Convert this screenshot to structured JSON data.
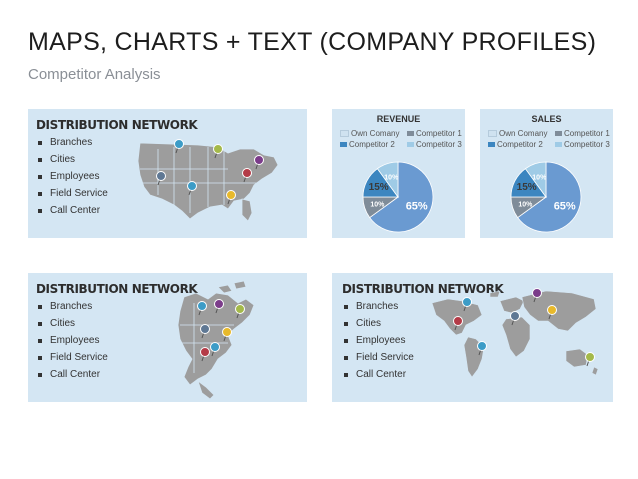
{
  "header": {
    "title": "MAPS, CHARTS + TEXT (COMPANY PROFILES)",
    "subtitle": "Competitor Analysis"
  },
  "panels": [
    {
      "title": "DISTRIBUTION NETWORK",
      "items": [
        "Branches",
        "Cities",
        "Employees",
        "Field Service",
        "Call Center"
      ]
    },
    {
      "title": "DISTRIBUTION NETWORK",
      "items": [
        "Branches",
        "Cities",
        "Employees",
        "Field Service",
        "Call Center"
      ]
    },
    {
      "title": "DISTRIBUTION NETWORK",
      "items": [
        "Branches",
        "Cities",
        "Employees",
        "Field Service",
        "Call Center"
      ]
    }
  ],
  "colors": {
    "panel_bg": "#d4e6f3",
    "map_fill": "#9d9d9d",
    "own_company": "#6a9ad1",
    "competitor_1": "#7f8c99",
    "competitor_2": "#3c86c0",
    "competitor_3": "#9fcbe6",
    "pin_teal": "#3c9cc7",
    "pin_green": "#a4b94a",
    "pin_purple": "#7b3c8a",
    "pin_slate": "#5f7894",
    "pin_red": "#b43b47",
    "pin_yellow": "#e8b92b"
  },
  "chart_data": [
    {
      "type": "pie",
      "title": "REVENUE",
      "labels": [
        "Own Comany",
        "Competitor 1",
        "Competitor 2",
        "Competitor 3"
      ],
      "values": [
        65,
        10,
        15,
        10
      ],
      "value_labels": [
        "65%",
        "10%",
        "15%",
        "10%"
      ],
      "legend": "top"
    },
    {
      "type": "pie",
      "title": "SALES",
      "labels": [
        "Own Comany",
        "Competitor 1",
        "Competitor 2",
        "Competitor 3"
      ],
      "values": [
        65,
        10,
        15,
        10
      ],
      "value_labels": [
        "65%",
        "10%",
        "15%",
        "10%"
      ],
      "legend": "top"
    }
  ]
}
